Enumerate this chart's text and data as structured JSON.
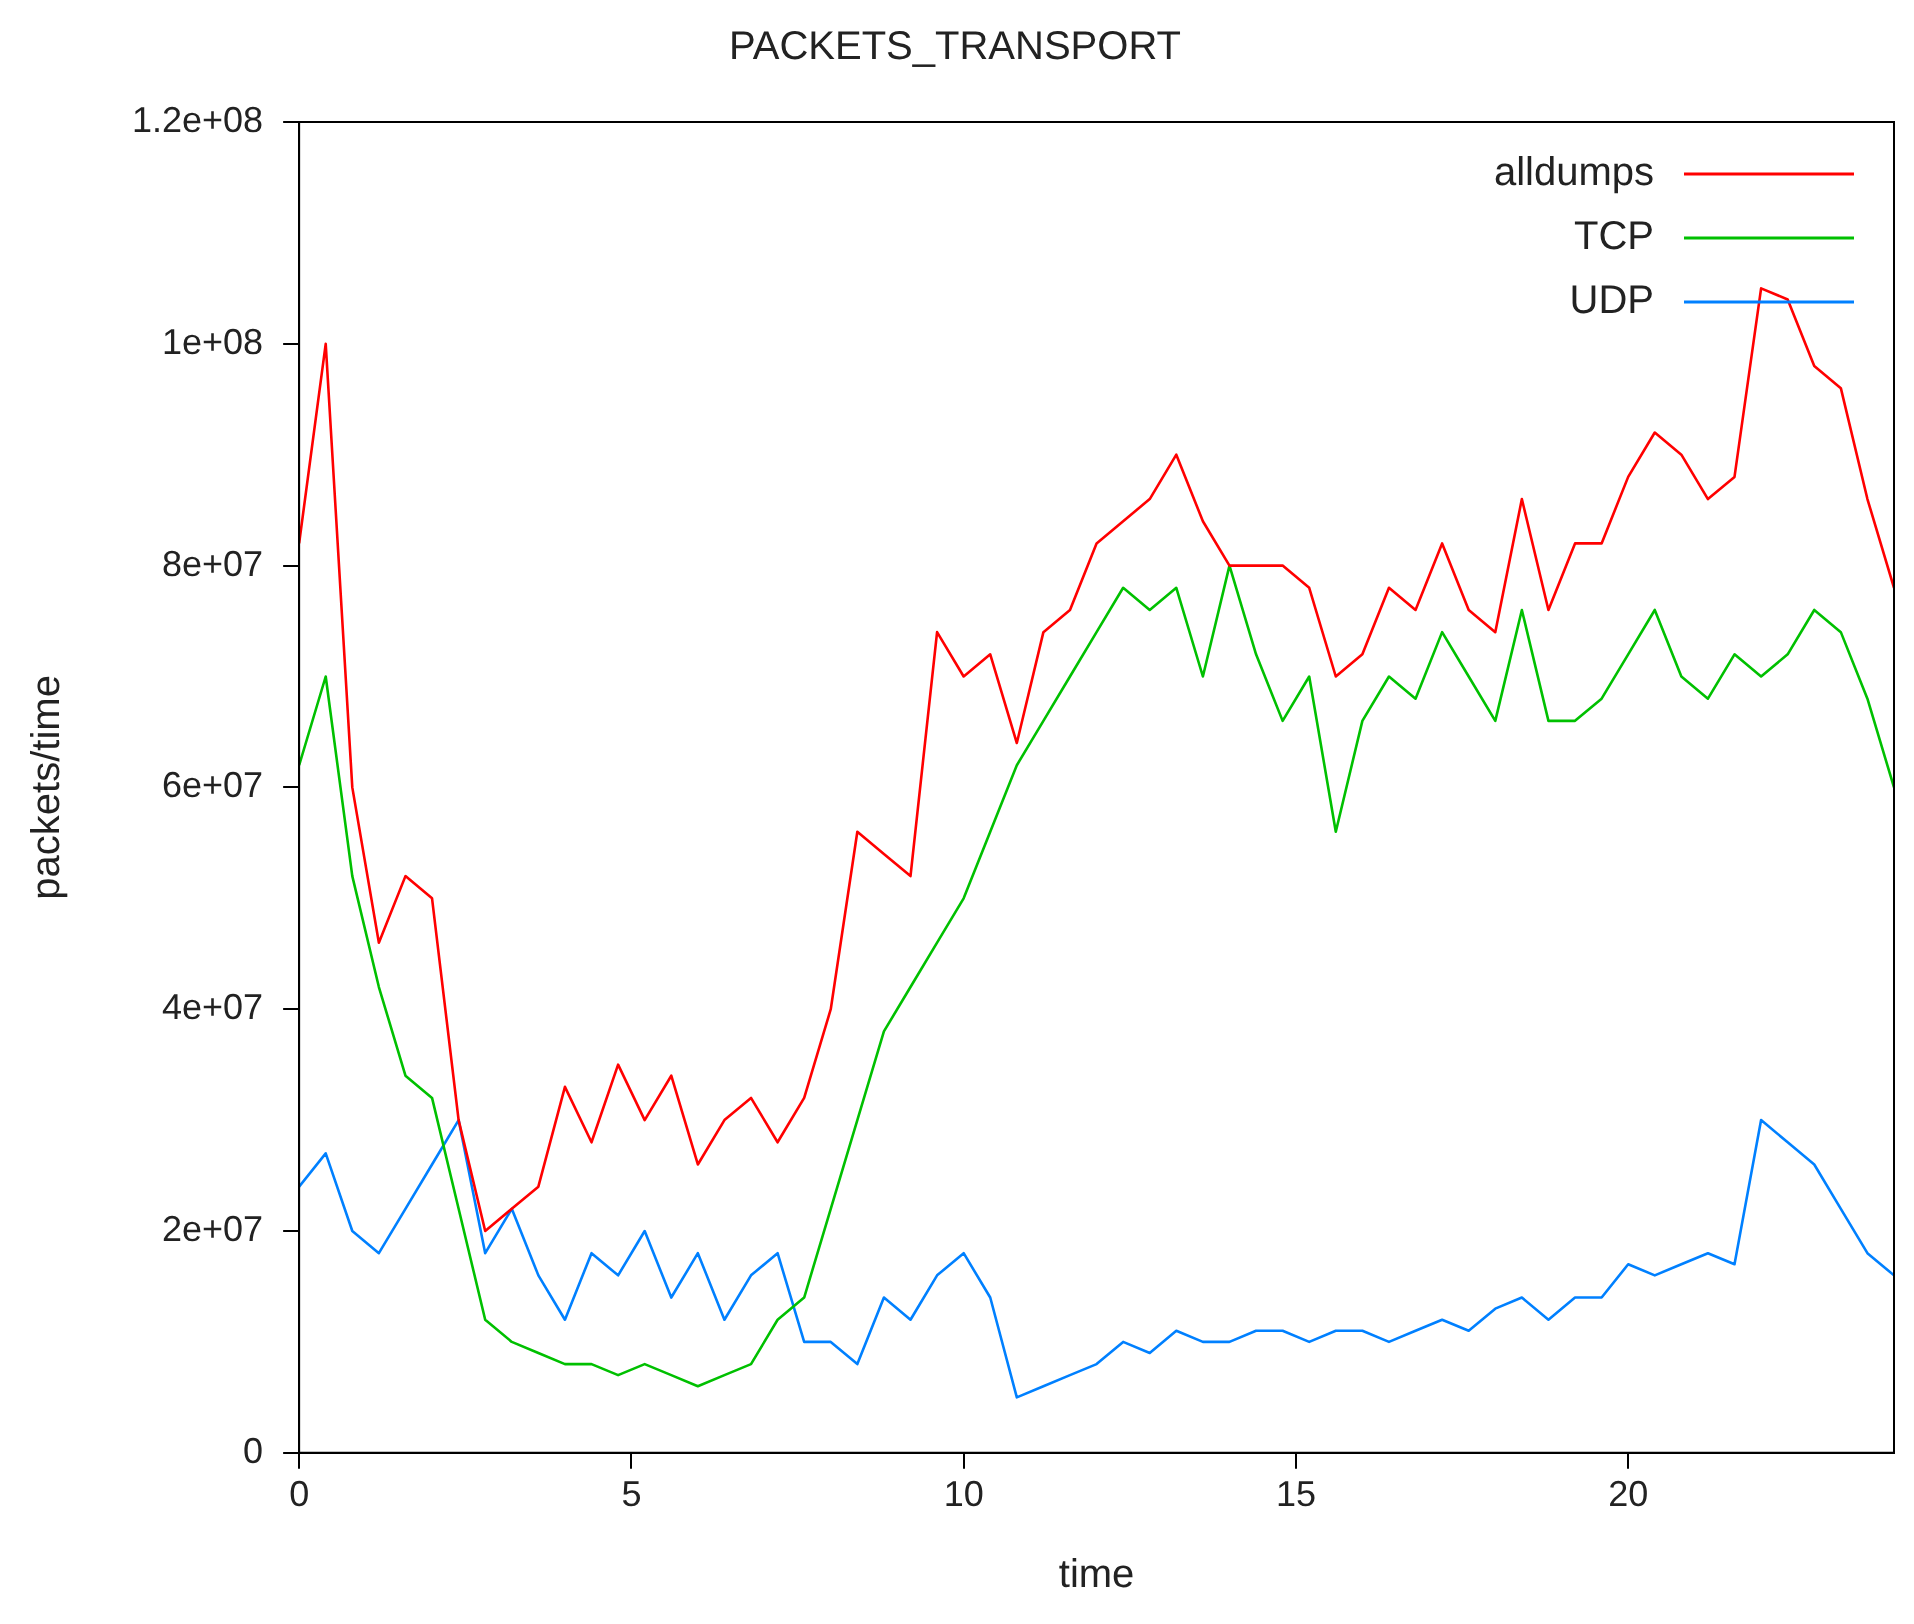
{
  "chart_data": {
    "type": "line",
    "title": "PACKETS_TRANSPORT",
    "xlabel": "time",
    "ylabel": "packets/time",
    "x": [
      0,
      0.4,
      0.8,
      1.2,
      1.6,
      2.0,
      2.4,
      2.8,
      3.2,
      3.6,
      4.0,
      4.4,
      4.8,
      5.2,
      5.6,
      6.0,
      6.4,
      6.8,
      7.2,
      7.6,
      8.0,
      8.4,
      8.8,
      9.2,
      9.6,
      10.0,
      10.4,
      10.8,
      11.2,
      11.6,
      12.0,
      12.4,
      12.8,
      13.2,
      13.6,
      14.0,
      14.4,
      14.8,
      15.2,
      15.6,
      16.0,
      16.4,
      16.8,
      17.2,
      17.6,
      18.0,
      18.4,
      18.8,
      19.2,
      19.6,
      20.0,
      20.4,
      20.8,
      21.2,
      21.6,
      22.0,
      22.4,
      22.8,
      23.2,
      23.6,
      24.0
    ],
    "series": [
      {
        "name": "alldumps",
        "color": "#ff0000",
        "values": [
          82000000,
          100000000,
          60000000,
          46000000,
          52000000,
          50000000,
          30000000,
          20000000,
          22000000,
          24000000,
          33000000,
          28000000,
          35000000,
          30000000,
          34000000,
          26000000,
          30000000,
          32000000,
          28000000,
          32000000,
          40000000,
          56000000,
          54000000,
          52000000,
          74000000,
          70000000,
          72000000,
          64000000,
          74000000,
          76000000,
          82000000,
          84000000,
          86000000,
          90000000,
          84000000,
          80000000,
          80000000,
          80000000,
          78000000,
          70000000,
          72000000,
          78000000,
          76000000,
          82000000,
          76000000,
          74000000,
          86000000,
          76000000,
          82000000,
          82000000,
          88000000,
          92000000,
          90000000,
          86000000,
          88000000,
          105000000,
          104000000,
          98000000,
          96000000,
          86000000,
          78000000
        ]
      },
      {
        "name": "TCP",
        "color": "#00c000",
        "values": [
          62000000,
          70000000,
          52000000,
          42000000,
          34000000,
          32000000,
          22000000,
          12000000,
          10000000,
          9000000,
          8000000,
          8000000,
          7000000,
          8000000,
          7000000,
          6000000,
          7000000,
          8000000,
          12000000,
          14000000,
          22000000,
          30000000,
          38000000,
          42000000,
          46000000,
          50000000,
          56000000,
          62000000,
          66000000,
          70000000,
          74000000,
          78000000,
          76000000,
          78000000,
          70000000,
          80000000,
          72000000,
          66000000,
          70000000,
          56000000,
          66000000,
          70000000,
          68000000,
          74000000,
          70000000,
          66000000,
          76000000,
          66000000,
          66000000,
          68000000,
          72000000,
          76000000,
          70000000,
          68000000,
          72000000,
          70000000,
          72000000,
          76000000,
          74000000,
          68000000,
          60000000
        ]
      },
      {
        "name": "UDP",
        "color": "#0080ff",
        "values": [
          24000000,
          27000000,
          20000000,
          18000000,
          22000000,
          26000000,
          30000000,
          18000000,
          22000000,
          16000000,
          12000000,
          18000000,
          16000000,
          20000000,
          14000000,
          18000000,
          12000000,
          16000000,
          18000000,
          10000000,
          10000000,
          8000000,
          14000000,
          12000000,
          16000000,
          18000000,
          14000000,
          5000000,
          6000000,
          7000000,
          8000000,
          10000000,
          9000000,
          11000000,
          10000000,
          10000000,
          11000000,
          11000000,
          10000000,
          11000000,
          11000000,
          10000000,
          11000000,
          12000000,
          11000000,
          13000000,
          14000000,
          12000000,
          14000000,
          14000000,
          17000000,
          16000000,
          17000000,
          18000000,
          17000000,
          30000000,
          28000000,
          26000000,
          22000000,
          18000000,
          16000000
        ]
      }
    ],
    "xlim": [
      0,
      24
    ],
    "xticks": [
      0,
      5,
      10,
      15,
      20
    ],
    "ylim": [
      0,
      120000000
    ],
    "yticks": [
      0,
      {
        "value": 20000000,
        "label": "2e+07"
      },
      {
        "value": 40000000,
        "label": "4e+07"
      },
      {
        "value": 60000000,
        "label": "6e+07"
      },
      {
        "value": 80000000,
        "label": "8e+07"
      },
      {
        "value": 100000000,
        "label": "1e+08"
      },
      {
        "value": 120000000,
        "label": "1.2e+08"
      }
    ],
    "legend": "top right",
    "marker": "none",
    "line_style": "solid"
  }
}
